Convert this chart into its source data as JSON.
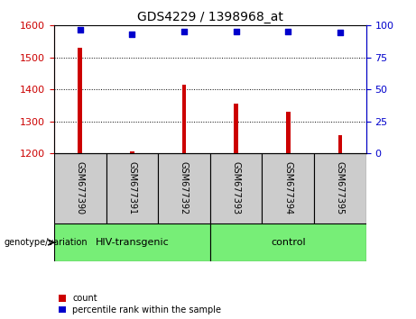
{
  "title": "GDS4229 / 1398968_at",
  "samples": [
    "GSM677390",
    "GSM677391",
    "GSM677392",
    "GSM677393",
    "GSM677394",
    "GSM677395"
  ],
  "bar_values": [
    1530,
    1205,
    1415,
    1355,
    1330,
    1255
  ],
  "percentile_values": [
    96.5,
    93.5,
    95.5,
    95.5,
    95.5,
    94.5
  ],
  "bar_base": 1200,
  "ylim_left": [
    1200,
    1600
  ],
  "ylim_right": [
    0,
    100
  ],
  "yticks_left": [
    1200,
    1300,
    1400,
    1500,
    1600
  ],
  "yticks_right": [
    0,
    25,
    50,
    75,
    100
  ],
  "bar_color": "#cc0000",
  "dot_color": "#0000cc",
  "bar_width": 0.08,
  "groups": [
    {
      "label": "HIV-transgenic",
      "indices": [
        0,
        1,
        2
      ],
      "color": "#77ee77"
    },
    {
      "label": "control",
      "indices": [
        3,
        4,
        5
      ],
      "color": "#77ee77"
    }
  ],
  "group_label_prefix": "genotype/variation",
  "legend_items": [
    {
      "label": "count",
      "color": "#cc0000"
    },
    {
      "label": "percentile rank within the sample",
      "color": "#0000cc"
    }
  ],
  "sample_box_color": "#cccccc",
  "grid_linestyle": ":"
}
